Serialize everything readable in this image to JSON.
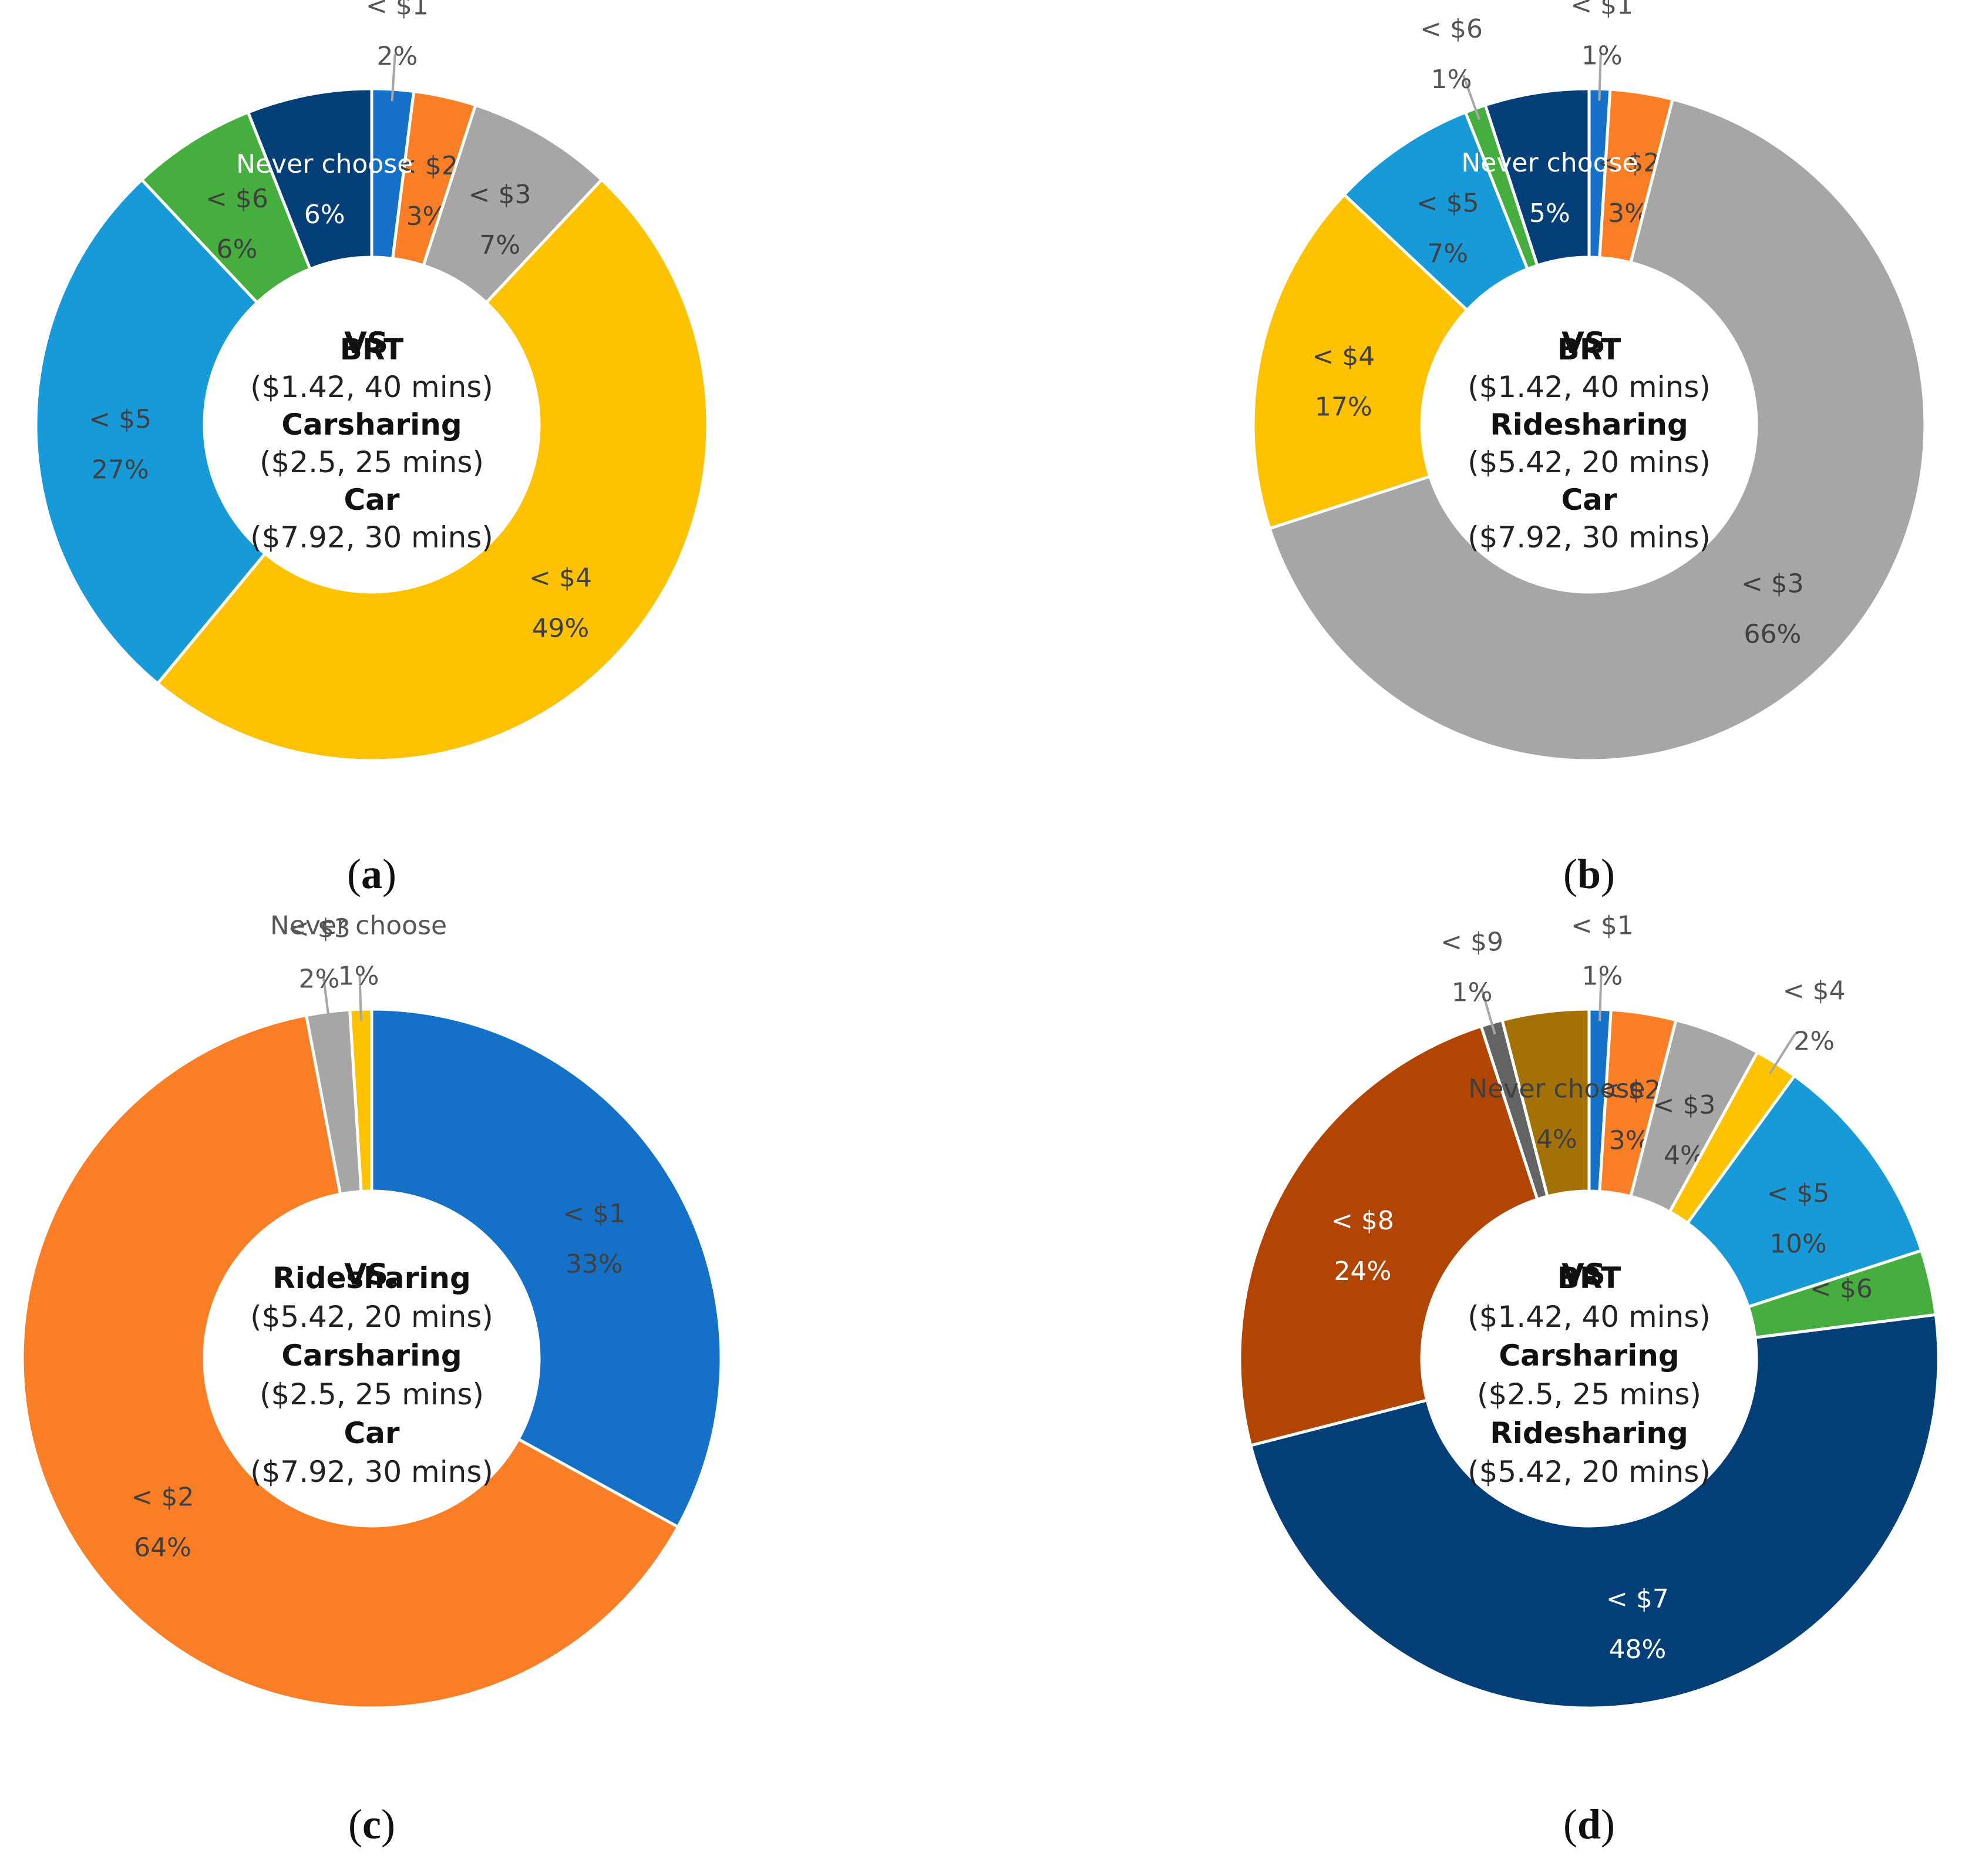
{
  "figure": {
    "colors": {
      "blue": "#1570C8",
      "orange": "#FA7E26",
      "gray": "#A6A6A6",
      "yellow": "#FEC200",
      "lightblue": "#189AD9",
      "green": "#45AE3F",
      "navy": "#053F78",
      "rust": "#B24503",
      "darkgray": "#636363",
      "olive": "#A47107"
    }
  },
  "chart_data": [
    {
      "type": "pie",
      "panel": "(a)",
      "caption_letter": "a",
      "center": {
        "vs": "VS.",
        "lines": [
          {
            "text": "BRT",
            "bold": true
          },
          {
            "text": "($1.42, 40 mins)",
            "bold": false
          },
          {
            "text": "Carsharing",
            "bold": true
          },
          {
            "text": "($2.5, 25 mins)",
            "bold": false
          },
          {
            "text": "Car",
            "bold": true
          },
          {
            "text": "($7.92, 30 mins)",
            "bold": false
          }
        ]
      },
      "slices": [
        {
          "label": "< $1",
          "value": 2,
          "display": "2%",
          "color": "#1570C8"
        },
        {
          "label": "< $2",
          "value": 3,
          "display": "3%",
          "color": "#FA7E26"
        },
        {
          "label": "< $3",
          "value": 7,
          "display": "7%",
          "color": "#A6A6A6"
        },
        {
          "label": "< $4",
          "value": 49,
          "display": "49%",
          "color": "#FEC200"
        },
        {
          "label": "< $5",
          "value": 27,
          "display": "27%",
          "color": "#189AD9"
        },
        {
          "label": "< $6",
          "value": 6,
          "display": "6%",
          "color": "#45AE3F"
        },
        {
          "label": "Never choose",
          "value": 6,
          "display": "6%",
          "color": "#053F78"
        }
      ]
    },
    {
      "type": "pie",
      "panel": "(b)",
      "caption_letter": "b",
      "center": {
        "vs": "VS.",
        "lines": [
          {
            "text": "BRT",
            "bold": true
          },
          {
            "text": "($1.42, 40 mins)",
            "bold": false
          },
          {
            "text": "Ridesharing",
            "bold": true
          },
          {
            "text": "($5.42, 20 mins)",
            "bold": false
          },
          {
            "text": "Car",
            "bold": true
          },
          {
            "text": "($7.92, 30 mins)",
            "bold": false
          }
        ]
      },
      "slices": [
        {
          "label": "< $1",
          "value": 1,
          "display": "1%",
          "color": "#1570C8"
        },
        {
          "label": "< $2",
          "value": 3,
          "display": "3%",
          "color": "#FA7E26"
        },
        {
          "label": "< $3",
          "value": 66,
          "display": "66%",
          "color": "#A6A6A6"
        },
        {
          "label": "< $4",
          "value": 17,
          "display": "17%",
          "color": "#FEC200"
        },
        {
          "label": "< $5",
          "value": 7,
          "display": "7%",
          "color": "#189AD9"
        },
        {
          "label": "< $6",
          "value": 1,
          "display": "1%",
          "color": "#45AE3F"
        },
        {
          "label": "Never choose",
          "value": 5,
          "display": "5%",
          "color": "#053F78"
        }
      ]
    },
    {
      "type": "pie",
      "panel": "(c)",
      "caption_letter": "c",
      "center": {
        "vs": "VS.",
        "lines": [
          {
            "text": "Ridesharing",
            "bold": true
          },
          {
            "text": "($5.42, 20 mins)",
            "bold": false
          },
          {
            "text": "Carsharing",
            "bold": true
          },
          {
            "text": "($2.5, 25 mins)",
            "bold": false
          },
          {
            "text": "Car",
            "bold": true
          },
          {
            "text": "($7.92, 30 mins)",
            "bold": false
          }
        ]
      },
      "slices": [
        {
          "label": "< $1",
          "value": 33,
          "display": "33%",
          "color": "#1570C8"
        },
        {
          "label": "< $2",
          "value": 64,
          "display": "64%",
          "color": "#FA7E26"
        },
        {
          "label": "< $3",
          "value": 2,
          "display": "2%",
          "color": "#A6A6A6"
        },
        {
          "label": "Never choose",
          "value": 1,
          "display": "1%",
          "color": "#FEC200"
        }
      ]
    },
    {
      "type": "pie",
      "panel": "(d)",
      "caption_letter": "d",
      "center": {
        "vs": "VS.",
        "lines": [
          {
            "text": "BRT",
            "bold": true
          },
          {
            "text": "($1.42, 40 mins)",
            "bold": false
          },
          {
            "text": "Carsharing",
            "bold": true
          },
          {
            "text": "($2.5, 25 mins)",
            "bold": false
          },
          {
            "text": "Ridesharing",
            "bold": true
          },
          {
            "text": "($5.42, 20 mins)",
            "bold": false
          }
        ]
      },
      "slices": [
        {
          "label": "< $1",
          "value": 1,
          "display": "1%",
          "color": "#1570C8"
        },
        {
          "label": "< $2",
          "value": 3,
          "display": "3%",
          "color": "#FA7E26"
        },
        {
          "label": "< $3",
          "value": 4,
          "display": "4%",
          "color": "#A6A6A6"
        },
        {
          "label": "< $4",
          "value": 2,
          "display": "2%",
          "color": "#FEC200"
        },
        {
          "label": "< $5",
          "value": 10,
          "display": "10%",
          "color": "#189AD9"
        },
        {
          "label": "< $6",
          "value": 3,
          "display": "3%",
          "color": "#45AE3F"
        },
        {
          "label": "< $7",
          "value": 48,
          "display": "48%",
          "color": "#053F78"
        },
        {
          "label": "< $8",
          "value": 24,
          "display": "24%",
          "color": "#B24503"
        },
        {
          "label": "< $9",
          "value": 1,
          "display": "1%",
          "color": "#636363"
        },
        {
          "label": "Never choose",
          "value": 4,
          "display": "4%",
          "color": "#A47107"
        }
      ]
    }
  ]
}
